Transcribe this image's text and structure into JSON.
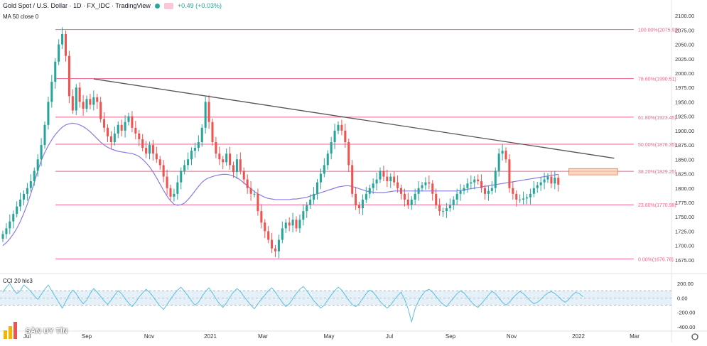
{
  "header": {
    "symbol": "Gold Spot / U.S. Dollar · 1D · FX_IDC · TradingView",
    "change": "+0.49 (+0.03%)",
    "ma_label": "MA 50 close 0",
    "cci_label": "CCI 20 hlc3"
  },
  "logo": {
    "text": "SÀN UY TÍN"
  },
  "colors": {
    "up": "#26a69a",
    "down": "#ef5350",
    "ma": "#8c7ae6",
    "fib": "#f06292",
    "trend": "#555555",
    "cci": "#5bc0de",
    "box": "#f8c9a8"
  },
  "chart_data": {
    "type": "candlestick",
    "price_axis": {
      "ylim": [
        1660,
        2110
      ],
      "ticks": [
        2100,
        2075,
        2050,
        2025,
        2000,
        1975,
        1950,
        1925,
        1900,
        1875,
        1850,
        1825,
        1800,
        1775,
        1750,
        1725,
        1700,
        1675
      ]
    },
    "x_axis": {
      "ticks": [
        "Jul",
        "Sep",
        "Nov",
        "2021",
        "Mar",
        "May",
        "Jul",
        "Sep",
        "Nov",
        "2022",
        "Mar"
      ]
    },
    "fibonacci": [
      {
        "label": "100.00%(2075.92)",
        "price": 2075.92
      },
      {
        "label": "78.60%(1990.51)",
        "price": 1990.51
      },
      {
        "label": "61.80%(1923.45)",
        "price": 1923.45
      },
      {
        "label": "50.00%(1876.35)",
        "price": 1876.35
      },
      {
        "label": "38.20%(1829.25)",
        "price": 1829.25
      },
      {
        "label": "23.60%(1770.98)",
        "price": 1770.98
      },
      {
        "label": "0.00%(1676.78)",
        "price": 1676.78
      }
    ],
    "closes": [
      1720,
      1730,
      1742,
      1755,
      1768,
      1780,
      1790,
      1800,
      1812,
      1830,
      1850,
      1875,
      1910,
      1950,
      1985,
      2020,
      2050,
      2068,
      2030,
      1960,
      1935,
      1975,
      1950,
      1938,
      1955,
      1945,
      1958,
      1950,
      1920,
      1905,
      1890,
      1880,
      1895,
      1910,
      1900,
      1915,
      1925,
      1905,
      1895,
      1885,
      1870,
      1860,
      1875,
      1860,
      1850,
      1840,
      1820,
      1800,
      1785,
      1790,
      1810,
      1830,
      1840,
      1850,
      1865,
      1870,
      1880,
      1905,
      1950,
      1915,
      1880,
      1860,
      1850,
      1845,
      1860,
      1840,
      1828,
      1850,
      1830,
      1815,
      1800,
      1790,
      1790,
      1760,
      1740,
      1725,
      1710,
      1695,
      1690,
      1710,
      1730,
      1740,
      1735,
      1745,
      1730,
      1745,
      1760,
      1770,
      1780,
      1790,
      1810,
      1825,
      1840,
      1860,
      1880,
      1900,
      1910,
      1900,
      1880,
      1840,
      1790,
      1770,
      1765,
      1780,
      1790,
      1800,
      1808,
      1815,
      1830,
      1820,
      1812,
      1820,
      1810,
      1800,
      1790,
      1780,
      1770,
      1780,
      1790,
      1800,
      1805,
      1810,
      1808,
      1790,
      1770,
      1760,
      1760,
      1765,
      1770,
      1780,
      1790,
      1795,
      1800,
      1808,
      1810,
      1815,
      1812,
      1800,
      1790,
      1795,
      1800,
      1830,
      1860,
      1865,
      1850,
      1800,
      1790,
      1780,
      1780,
      1782,
      1784,
      1790,
      1800,
      1805,
      1810,
      1815,
      1820,
      1808,
      1818,
      1806
    ],
    "ma50": [
      1700,
      1705,
      1712,
      1720,
      1730,
      1742,
      1756,
      1772,
      1790,
      1810,
      1830,
      1848,
      1862,
      1874,
      1884,
      1893,
      1900,
      1906,
      1910,
      1912,
      1913,
      1912,
      1910,
      1907,
      1903,
      1898,
      1892,
      1886,
      1880,
      1875,
      1871,
      1868,
      1866,
      1864,
      1863,
      1862,
      1861,
      1860,
      1858,
      1855,
      1850,
      1844,
      1837,
      1828,
      1818,
      1807,
      1796,
      1786,
      1778,
      1772,
      1770,
      1771,
      1774,
      1780,
      1787,
      1795,
      1803,
      1810,
      1815,
      1818,
      1820,
      1822,
      1823,
      1824,
      1824,
      1823,
      1821,
      1818,
      1814,
      1809,
      1804,
      1799,
      1794,
      1790,
      1787,
      1784,
      1782,
      1781,
      1780,
      1780,
      1780,
      1780,
      1780,
      1781,
      1781,
      1782,
      1783,
      1784,
      1786,
      1788,
      1790,
      1792,
      1794,
      1796,
      1798,
      1800,
      1802,
      1803,
      1804,
      1804,
      1803,
      1801,
      1799,
      1797,
      1795,
      1794,
      1793,
      1792,
      1792,
      1792,
      1793,
      1794,
      1795,
      1795,
      1795,
      1795,
      1795,
      1795,
      1795,
      1795,
      1795,
      1795,
      1795,
      1795,
      1795,
      1795,
      1795,
      1795,
      1795,
      1795,
      1795,
      1796,
      1797,
      1798,
      1799,
      1800,
      1801,
      1802,
      1803,
      1804,
      1805,
      1806,
      1807,
      1808,
      1809,
      1810,
      1811,
      1812,
      1813,
      1814,
      1815,
      1816,
      1817,
      1818,
      1819,
      1820,
      1821,
      1822,
      1823,
      1824
    ],
    "trendline": {
      "from_index": 26,
      "from_price": 1990,
      "to_index": 175,
      "to_price": 1852
    },
    "cci": {
      "ylim": [
        -420,
        260
      ],
      "ticks": [
        200,
        0,
        -200,
        -400
      ],
      "band": [
        -100,
        100
      ],
      "values": [
        80,
        150,
        200,
        120,
        60,
        100,
        180,
        140,
        90,
        30,
        -20,
        50,
        120,
        180,
        100,
        20,
        -60,
        -140,
        -50,
        40,
        110,
        60,
        -20,
        -80,
        -30,
        60,
        130,
        80,
        20,
        -40,
        -90,
        -30,
        40,
        100,
        60,
        -10,
        -70,
        -120,
        -60,
        10,
        70,
        120,
        80,
        20,
        -50,
        -110,
        -160,
        -90,
        -20,
        50,
        110,
        150,
        90,
        30,
        -40,
        -100,
        -60,
        20,
        90,
        140,
        70,
        -10,
        -80,
        -130,
        -70,
        10,
        80,
        130,
        90,
        20,
        -40,
        -100,
        -150,
        -80,
        -20,
        40,
        100,
        140,
        80,
        10,
        -60,
        -120,
        -80,
        -10,
        60,
        120,
        160,
        100,
        30,
        -40,
        -90,
        -140,
        -100,
        -30,
        40,
        100,
        150,
        110,
        40,
        -30,
        -90,
        -120,
        -80,
        -10,
        60,
        110,
        80,
        20,
        -50,
        -100,
        -140,
        -100,
        -30,
        30,
        80,
        -20,
        -150,
        -330,
        -150,
        -40,
        40,
        100,
        120,
        80,
        20,
        -40,
        -90,
        -120,
        -60,
        0,
        60,
        100,
        70,
        10,
        -50,
        -100,
        -130,
        -80,
        -20,
        40,
        90,
        60,
        0,
        -60,
        -100,
        -60,
        0,
        50,
        90,
        60,
        10,
        -40,
        -80,
        -60,
        -20,
        30,
        70,
        90,
        60,
        20,
        -30,
        -60,
        -20,
        40,
        80,
        60,
        20
      ]
    },
    "box": {
      "from_index": 162,
      "to_index": 176,
      "price_top": 1834,
      "price_bottom": 1823
    }
  }
}
